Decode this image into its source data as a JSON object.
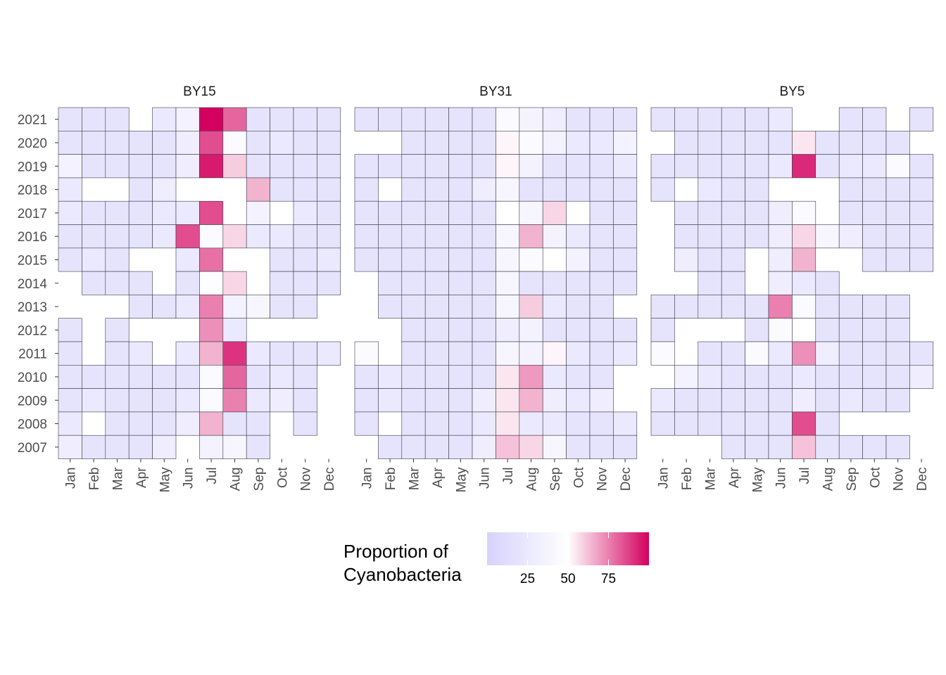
{
  "chart_data": {
    "type": "heatmap",
    "months": [
      "Jan",
      "Feb",
      "Mar",
      "Apr",
      "May",
      "Jun",
      "Jul",
      "Aug",
      "Sep",
      "Oct",
      "Nov",
      "Dec"
    ],
    "years": [
      "2021",
      "2020",
      "2019",
      "2018",
      "2017",
      "2016",
      "2015",
      "2014",
      "2013",
      "2012",
      "2011",
      "2010",
      "2009",
      "2008",
      "2007"
    ],
    "panels": [
      {
        "title": "BY15",
        "values": [
          [
            20,
            20,
            20,
            null,
            25,
            35,
            100,
            80,
            20,
            20,
            20,
            20
          ],
          [
            20,
            20,
            20,
            20,
            20,
            30,
            85,
            45,
            20,
            25,
            20,
            20
          ],
          [
            35,
            20,
            20,
            20,
            20,
            30,
            95,
            60,
            20,
            20,
            20,
            20
          ],
          [
            25,
            null,
            null,
            20,
            30,
            null,
            null,
            null,
            65,
            20,
            20,
            20
          ],
          [
            25,
            20,
            20,
            20,
            25,
            25,
            85,
            null,
            35,
            null,
            25,
            20
          ],
          [
            20,
            20,
            20,
            20,
            25,
            85,
            45,
            58,
            25,
            25,
            20,
            20
          ],
          [
            20,
            25,
            20,
            null,
            null,
            25,
            78,
            null,
            null,
            20,
            20,
            25
          ],
          [
            null,
            20,
            20,
            20,
            null,
            20,
            48,
            58,
            null,
            20,
            20,
            20
          ],
          [
            null,
            null,
            null,
            20,
            20,
            25,
            75,
            35,
            40,
            20,
            20,
            null
          ],
          [
            20,
            null,
            20,
            null,
            null,
            null,
            72,
            25,
            null,
            null,
            null,
            null
          ],
          [
            20,
            null,
            20,
            25,
            null,
            25,
            65,
            90,
            25,
            20,
            20,
            25
          ],
          [
            20,
            20,
            20,
            20,
            20,
            20,
            45,
            80,
            20,
            25,
            20,
            null
          ],
          [
            20,
            25,
            20,
            20,
            20,
            25,
            45,
            75,
            25,
            30,
            20,
            null
          ],
          [
            25,
            null,
            20,
            20,
            20,
            30,
            65,
            20,
            20,
            null,
            20,
            null
          ],
          [
            30,
            20,
            20,
            20,
            30,
            null,
            35,
            40,
            20,
            null,
            null,
            null
          ]
        ]
      },
      {
        "title": "BY31",
        "values": [
          [
            20,
            20,
            20,
            20,
            20,
            20,
            45,
            38,
            30,
            20,
            20,
            20
          ],
          [
            null,
            null,
            20,
            20,
            20,
            20,
            52,
            45,
            35,
            25,
            25,
            35
          ],
          [
            20,
            20,
            20,
            20,
            20,
            20,
            52,
            35,
            20,
            20,
            20,
            25
          ],
          [
            20,
            null,
            20,
            20,
            20,
            30,
            40,
            20,
            20,
            20,
            20,
            20
          ],
          [
            20,
            20,
            20,
            20,
            20,
            20,
            50,
            40,
            58,
            null,
            20,
            20
          ],
          [
            20,
            20,
            20,
            20,
            20,
            20,
            40,
            65,
            35,
            25,
            20,
            20
          ],
          [
            20,
            20,
            20,
            20,
            20,
            20,
            40,
            45,
            null,
            35,
            20,
            20
          ],
          [
            null,
            20,
            20,
            20,
            20,
            20,
            40,
            20,
            20,
            20,
            20,
            20
          ],
          [
            null,
            20,
            20,
            20,
            20,
            20,
            40,
            60,
            25,
            20,
            20,
            null
          ],
          [
            null,
            null,
            20,
            20,
            20,
            20,
            30,
            35,
            20,
            20,
            20,
            20
          ],
          [
            45,
            null,
            20,
            20,
            20,
            20,
            40,
            35,
            52,
            25,
            20,
            25
          ],
          [
            20,
            25,
            20,
            20,
            20,
            20,
            55,
            70,
            25,
            20,
            20,
            null
          ],
          [
            20,
            25,
            20,
            20,
            20,
            30,
            55,
            65,
            30,
            25,
            30,
            null
          ],
          [
            20,
            null,
            20,
            20,
            20,
            25,
            55,
            25,
            25,
            20,
            20,
            25
          ],
          [
            null,
            20,
            20,
            20,
            20,
            30,
            62,
            58,
            40,
            20,
            20,
            20
          ]
        ]
      },
      {
        "title": "BY5",
        "values": [
          [
            20,
            20,
            20,
            20,
            20,
            25,
            null,
            null,
            20,
            20,
            null,
            20
          ],
          [
            null,
            20,
            20,
            20,
            20,
            20,
            55,
            20,
            20,
            20,
            20,
            null
          ],
          [
            20,
            20,
            20,
            20,
            20,
            25,
            92,
            20,
            25,
            25,
            45,
            20
          ],
          [
            20,
            null,
            25,
            20,
            20,
            null,
            null,
            null,
            20,
            20,
            20,
            20
          ],
          [
            null,
            20,
            20,
            20,
            20,
            30,
            45,
            null,
            20,
            20,
            20,
            20
          ],
          [
            null,
            20,
            20,
            20,
            20,
            30,
            58,
            40,
            30,
            20,
            20,
            20
          ],
          [
            null,
            30,
            20,
            20,
            null,
            30,
            65,
            null,
            null,
            20,
            20,
            20
          ],
          [
            null,
            null,
            20,
            20,
            null,
            30,
            25,
            20,
            null,
            null,
            null,
            null
          ],
          [
            20,
            20,
            20,
            20,
            20,
            75,
            45,
            20,
            20,
            20,
            20,
            null
          ],
          [
            20,
            null,
            null,
            null,
            20,
            45,
            50,
            20,
            20,
            20,
            20,
            null
          ],
          [
            45,
            null,
            20,
            20,
            45,
            25,
            72,
            30,
            20,
            20,
            20,
            20
          ],
          [
            null,
            35,
            25,
            20,
            20,
            20,
            25,
            20,
            20,
            20,
            20,
            30
          ],
          [
            25,
            20,
            20,
            20,
            20,
            20,
            30,
            20,
            25,
            20,
            20,
            null
          ],
          [
            20,
            20,
            20,
            20,
            20,
            20,
            85,
            20,
            null,
            null,
            null,
            null
          ],
          [
            null,
            null,
            null,
            20,
            20,
            20,
            62,
            20,
            20,
            20,
            20,
            null
          ]
        ]
      }
    ],
    "legend": {
      "title_lines": [
        "Proportion of",
        "Cyanobacteria"
      ],
      "ticks": [
        25,
        50,
        75
      ],
      "range": [
        0,
        100
      ],
      "colors": {
        "low": "#d6d2fc",
        "mid": "#ffffff",
        "high": "#d4005f"
      }
    },
    "xlabel": "",
    "ylabel": ""
  }
}
